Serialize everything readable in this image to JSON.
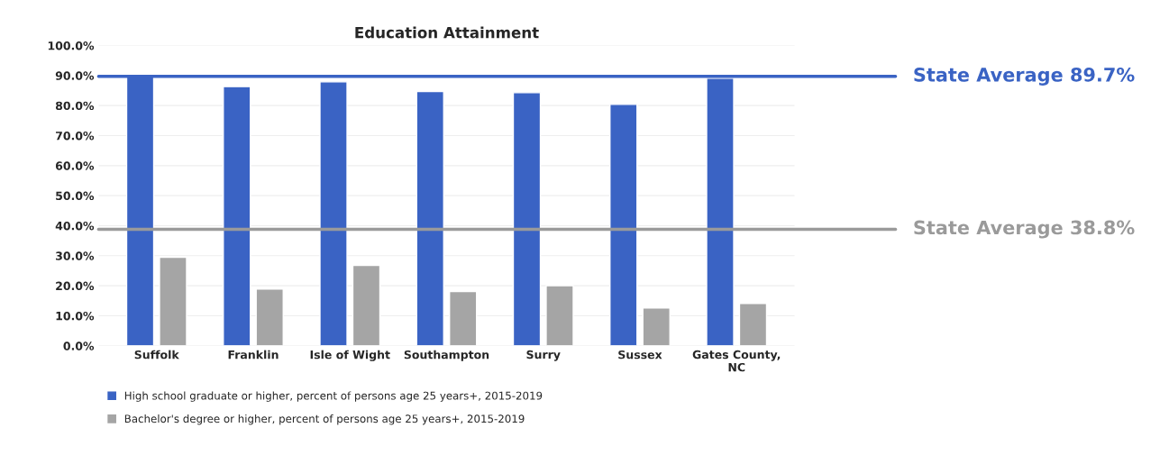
{
  "chart_data": {
    "type": "bar",
    "title": "Education Attainment",
    "categories": [
      "Suffolk",
      "Franklin",
      "Isle of Wight",
      "Southampton",
      "Surry",
      "Sussex",
      "Gates County,\nNC"
    ],
    "series": [
      {
        "name": "High school graduate or higher, percent of persons age 25 years+, 2015-2019",
        "color": "#3a63c4",
        "values": [
          89.6,
          86.3,
          87.9,
          84.7,
          84.3,
          80.4,
          89.1
        ]
      },
      {
        "name": "Bachelor's degree or higher, percent of persons age 25 years+, 2015-2019",
        "color": "#a5a5a5",
        "values": [
          29.5,
          18.9,
          26.8,
          18.1,
          20.0,
          12.6,
          14.1
        ]
      }
    ],
    "ylim": [
      0,
      100
    ],
    "yticks": [
      {
        "value": 0,
        "label": "0.0%"
      },
      {
        "value": 10,
        "label": "10.0%"
      },
      {
        "value": 20,
        "label": "20.0%"
      },
      {
        "value": 30,
        "label": "30.0%"
      },
      {
        "value": 40,
        "label": "40.0%"
      },
      {
        "value": 50,
        "label": "50.0%"
      },
      {
        "value": 60,
        "label": "60.0%"
      },
      {
        "value": 70,
        "label": "70.0%"
      },
      {
        "value": 80,
        "label": "80.0%"
      },
      {
        "value": 90,
        "label": "90.0%"
      },
      {
        "value": 100,
        "label": "100.0%"
      }
    ],
    "ref_lines": [
      {
        "axis": "y",
        "value": 89.7,
        "label": "State Average 89.7%",
        "color": "#3a63c4"
      },
      {
        "axis": "y",
        "value": 38.8,
        "label": "State Average 38.8%",
        "color": "#9a9a9a"
      }
    ],
    "grid": "y",
    "legend": "bottom"
  }
}
